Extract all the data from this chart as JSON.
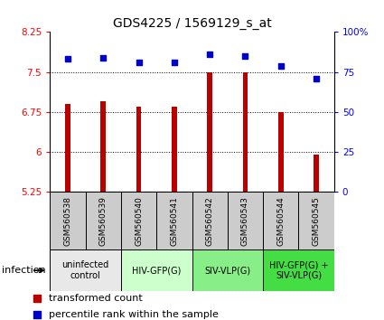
{
  "title": "GDS4225 / 1569129_s_at",
  "samples": [
    "GSM560538",
    "GSM560539",
    "GSM560540",
    "GSM560541",
    "GSM560542",
    "GSM560543",
    "GSM560544",
    "GSM560545"
  ],
  "bar_values": [
    6.9,
    6.95,
    6.85,
    6.85,
    7.5,
    7.5,
    6.75,
    5.95
  ],
  "percentile_values": [
    83,
    84,
    81,
    81,
    86,
    85,
    79,
    71
  ],
  "ylim_left": [
    5.25,
    8.25
  ],
  "ylim_right": [
    0,
    100
  ],
  "yticks_left": [
    5.25,
    6.0,
    6.75,
    7.5,
    8.25
  ],
  "yticks_right": [
    0,
    25,
    50,
    75,
    100
  ],
  "ytick_labels_left": [
    "5.25",
    "6",
    "6.75",
    "7.5",
    "8.25"
  ],
  "ytick_labels_right": [
    "0",
    "25",
    "50",
    "75",
    "100%"
  ],
  "bar_color": "#bb0000",
  "scatter_color": "#0000cc",
  "groups_data": [
    {
      "label": "uninfected\ncontrol",
      "start": 0,
      "end": 1,
      "color": "#e8e8e8"
    },
    {
      "label": "HIV-GFP(G)",
      "start": 2,
      "end": 3,
      "color": "#ccffcc"
    },
    {
      "label": "SIV-VLP(G)",
      "start": 4,
      "end": 5,
      "color": "#88ee88"
    },
    {
      "label": "HIV-GFP(G) +\nSIV-VLP(G)",
      "start": 6,
      "end": 7,
      "color": "#44dd44"
    }
  ],
  "sample_label_bg": "#cccccc",
  "title_fontsize": 10,
  "tick_fontsize": 7.5,
  "sample_fontsize": 6.5,
  "group_fontsize": 7,
  "legend_fontsize": 8,
  "infection_label": "infection",
  "legend_items": [
    "transformed count",
    "percentile rank within the sample"
  ]
}
